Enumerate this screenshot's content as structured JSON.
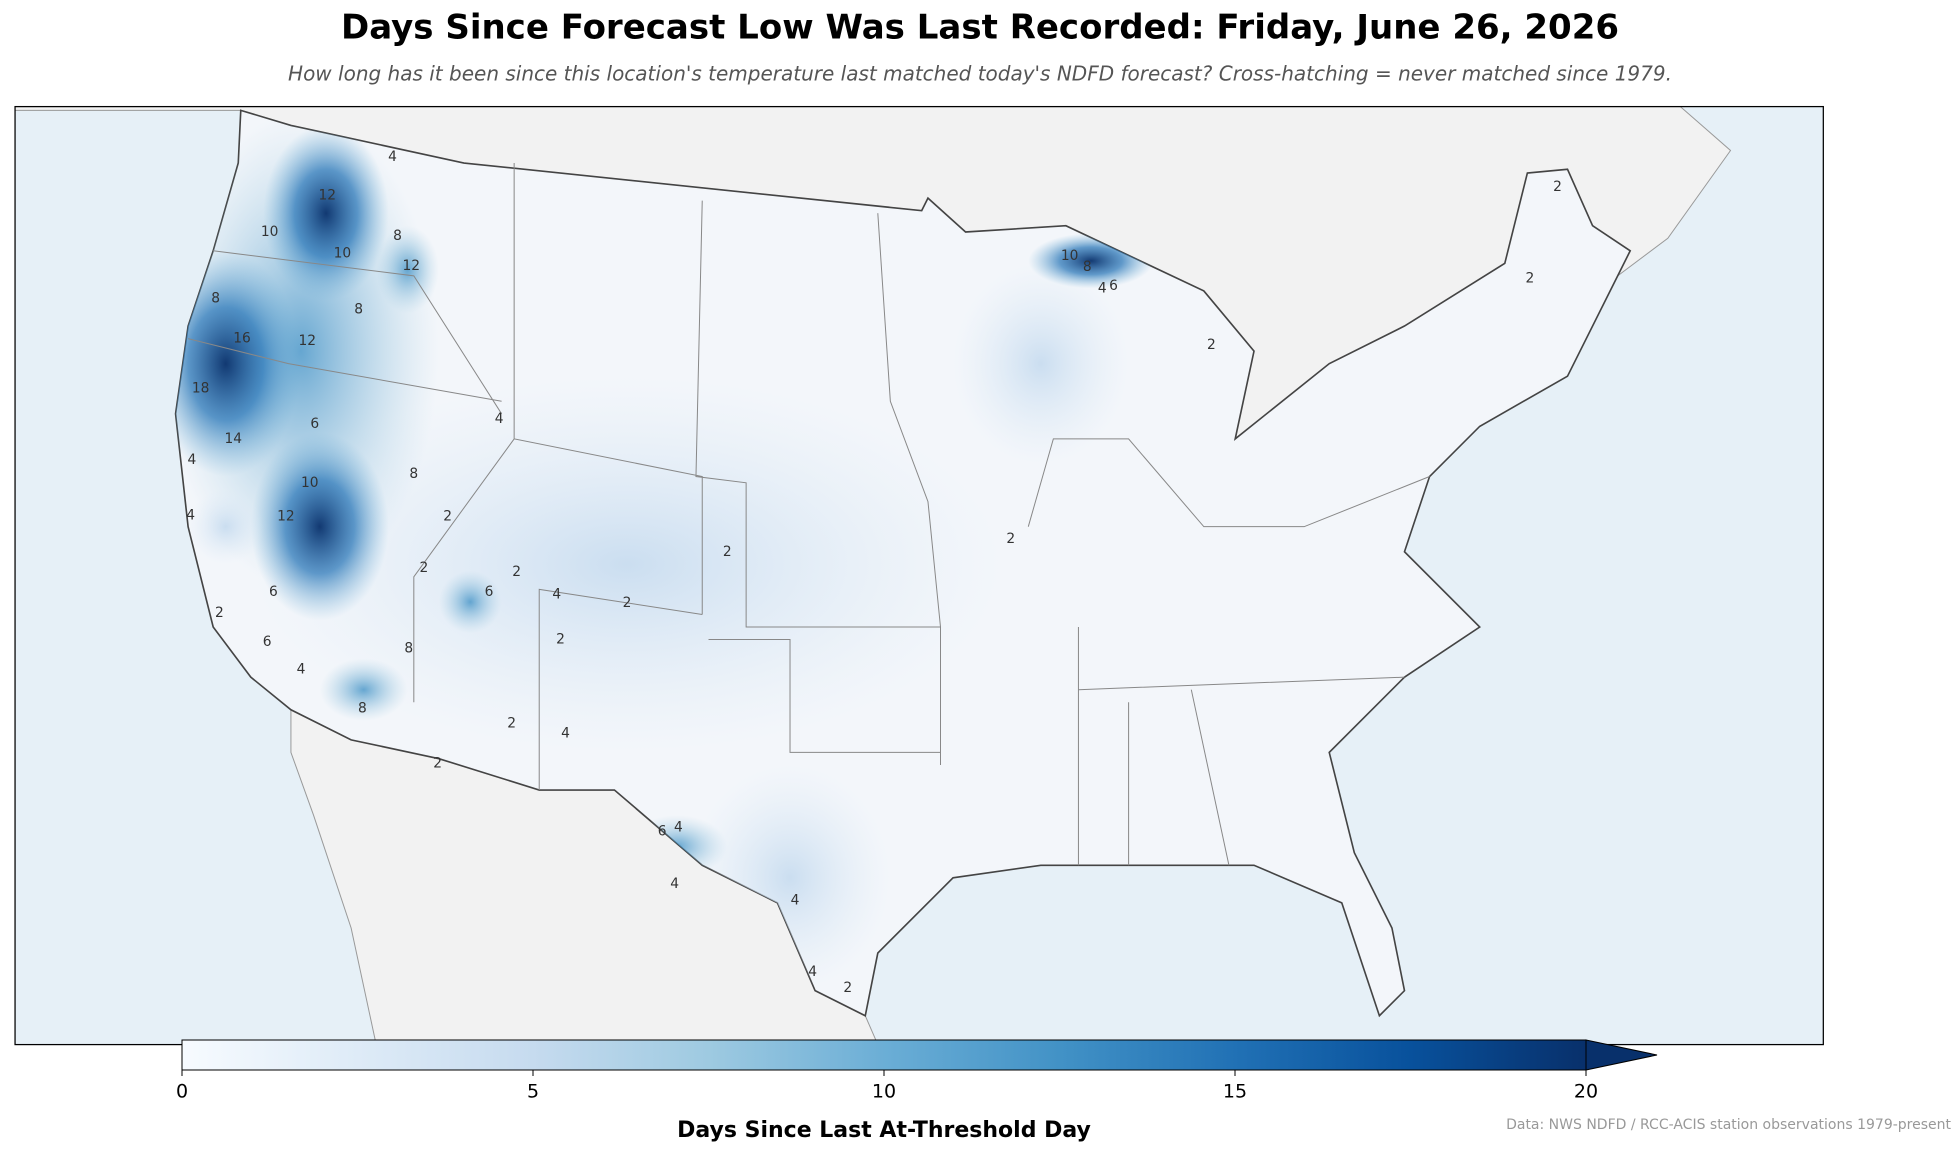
{
  "map": {
    "title": "Days Since Forecast Low Was Last Recorded: Friday, June 26, 2026",
    "subtitle": "How long has it been since this location's temperature last matched today's NDFD forecast? Cross-hatching = never matched since 1979.",
    "colorbar": {
      "label": "Days Since Last At-Threshold Day",
      "range": [
        0,
        20
      ],
      "ticks": [
        0,
        5,
        10,
        15,
        20
      ],
      "extend": "max",
      "colors": [
        "#f7fbff",
        "#deebf7",
        "#c6dbef",
        "#9ecae1",
        "#6baed6",
        "#4292c6",
        "#2171b5",
        "#08519c",
        "#08306b"
      ]
    },
    "contour_labels": [
      12,
      10,
      10,
      8,
      12,
      8,
      8,
      16,
      12,
      18,
      14,
      6,
      4,
      8,
      10,
      12,
      2,
      6,
      4,
      8,
      8,
      2,
      6,
      2,
      4,
      2,
      2,
      2,
      4,
      2,
      6,
      4,
      4,
      4,
      4,
      2,
      10,
      8,
      4,
      6,
      2,
      2,
      2,
      2,
      4,
      4,
      2,
      6,
      4,
      2
    ],
    "source": "Data: NWS NDFD / RCC-ACIS station observations 1979-present"
  }
}
